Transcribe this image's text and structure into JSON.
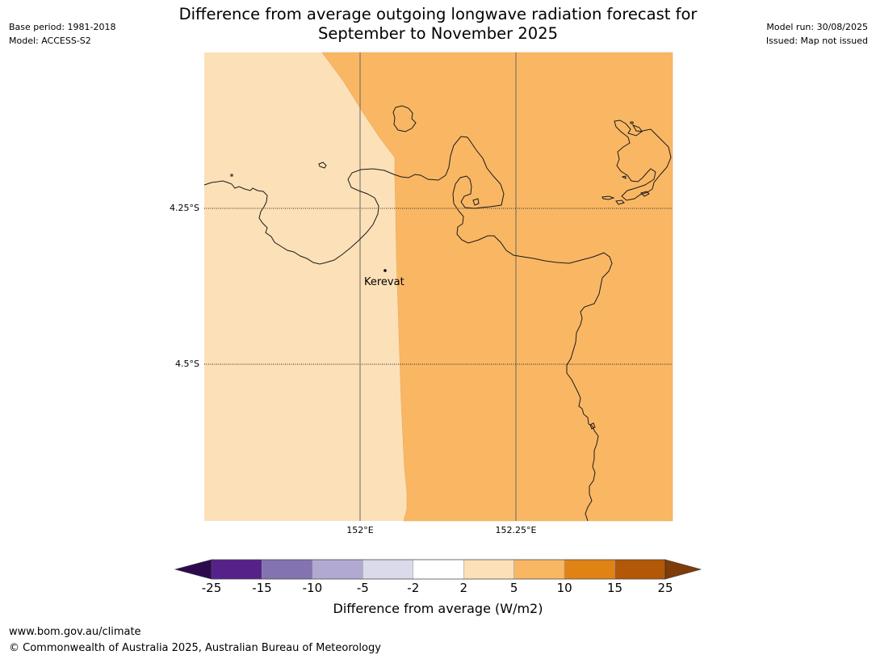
{
  "header": {
    "base_period": "Base period: 1981-2018",
    "model": "Model: ACCESS-S2",
    "model_run": "Model run: 30/08/2025",
    "issued": "Issued: Map not issued",
    "title_line1": "Difference from average outgoing longwave radiation forecast for",
    "title_line2": "September to November 2025"
  },
  "map": {
    "lat_labels": [
      "4.25°S",
      "4.5°S"
    ],
    "lon_labels": [
      "152°E",
      "152.25°E"
    ],
    "place": "Kerevat",
    "colors": {
      "band_2_5": "#fce0b7",
      "band_5_10": "#f9b764",
      "coast": "#1a1a1a"
    }
  },
  "colorbar": {
    "ticks": [
      "-25",
      "-15",
      "-10",
      "-5",
      "-2",
      "2",
      "5",
      "10",
      "15",
      "25"
    ],
    "colors": [
      "#2d0a4e",
      "#562289",
      "#8373b0",
      "#b1a9d2",
      "#dadaea",
      "#ffffff",
      "#fce0b7",
      "#f9b764",
      "#e08214",
      "#b35806",
      "#7f3b08"
    ],
    "label": "Difference from average (W/m2)"
  },
  "footer": {
    "url": "www.bom.gov.au/climate",
    "copyright": "© Commonwealth of Australia 2025, Australian Bureau of Meteorology"
  }
}
